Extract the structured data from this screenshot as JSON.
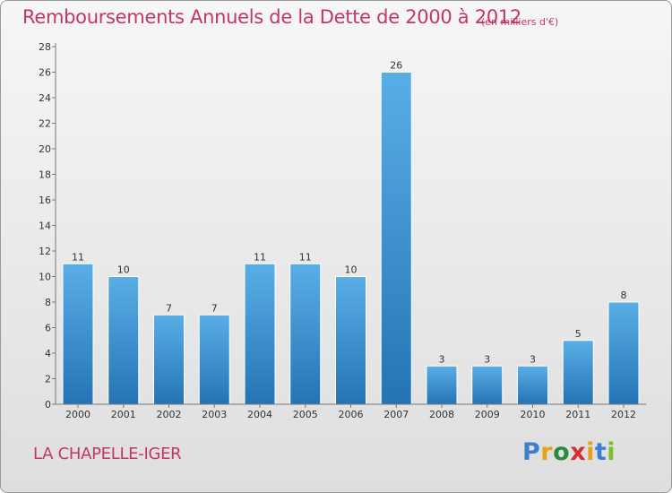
{
  "header": {
    "title": "Remboursements Annuels de la Dette de 2000 à 2012",
    "unit": "(en milliers d'€)"
  },
  "footer": {
    "commune": "LA CHAPELLE-IGER",
    "logo_letters": [
      "P",
      "r",
      "o",
      "x",
      "i",
      "t",
      "i"
    ],
    "logo_colors": [
      "#3a7fd0",
      "#e8a21a",
      "#2b8a3e",
      "#d62f2f",
      "#e8a21a",
      "#3a7fd0",
      "#7bbf2a"
    ]
  },
  "colors": {
    "title": "#c2366a",
    "bar_top": "#5aaee6",
    "bar_bottom": "#2474b5"
  },
  "chart_data": {
    "type": "bar",
    "title": "Remboursements Annuels de la Dette de 2000 à 2012",
    "subtitle": "(en milliers d'€)",
    "categories": [
      "2000",
      "2001",
      "2002",
      "2003",
      "2004",
      "2005",
      "2006",
      "2007",
      "2008",
      "2009",
      "2010",
      "2011",
      "2012"
    ],
    "values": [
      11,
      10,
      7,
      7,
      11,
      11,
      10,
      26,
      3,
      3,
      3,
      5,
      8
    ],
    "ylim": [
      0,
      28
    ],
    "yticks": [
      0,
      2,
      4,
      6,
      8,
      10,
      12,
      14,
      16,
      18,
      20,
      22,
      24,
      26,
      28
    ],
    "grid": false,
    "data_labels": true
  }
}
